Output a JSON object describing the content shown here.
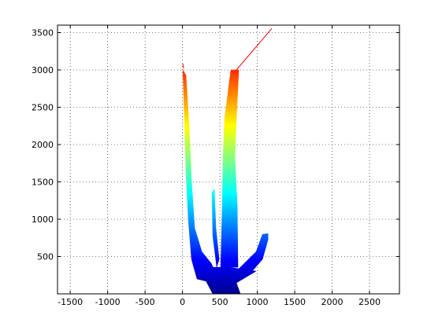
{
  "chart_data": {
    "type": "patch",
    "xlim": [
      -1670,
      2900
    ],
    "ylim": [
      0,
      3600
    ],
    "xticks": [
      -1500,
      -1000,
      -500,
      0,
      500,
      1000,
      1500,
      2000,
      2500
    ],
    "yticks": [
      500,
      1000,
      1500,
      2000,
      2500,
      3000,
      3500
    ],
    "grid": true,
    "clim": [
      0,
      3600
    ],
    "colormap": [
      "#00008f",
      "#0000ff",
      "#0080ff",
      "#00ffff",
      "#80ff80",
      "#ffff00",
      "#ff8000",
      "#ff0000",
      "#800000"
    ],
    "series": [
      {
        "kind": "patch",
        "x": [
          5,
          47,
          89,
          121,
          163,
          258,
          384,
          458,
          405,
          195,
          121,
          79,
          47,
          26
        ],
        "y": [
          3000,
          2927,
          2245,
          1511,
          881,
          566,
          409,
          252,
          147,
          199,
          462,
          986,
          1615,
          2350
        ]
      },
      {
        "kind": "patch",
        "x": [
          395,
          426,
          447,
          490,
          458,
          405
        ],
        "y": [
          1353,
          1406,
          881,
          462,
          357,
          776
        ]
      },
      {
        "kind": "patch",
        "x": [
          647,
          753,
          721,
          700,
          732,
          742,
          511,
          532,
          542,
          563
        ],
        "y": [
          3000,
          3000,
          2350,
          1825,
          1196,
          357,
          357,
          1196,
          1825,
          2350
        ]
      },
      {
        "kind": "patch",
        "x": [
          721,
          985,
          1069,
          1143,
          1143,
          1069,
          932,
          742
        ],
        "y": [
          304,
          566,
          797,
          808,
          724,
          462,
          304,
          231
        ]
      },
      {
        "kind": "patch",
        "x": [
          247,
          616,
          985,
          721,
          774,
          405,
          300
        ],
        "y": [
          357,
          357,
          304,
          147,
          0,
          0,
          199
        ]
      },
      {
        "kind": "line",
        "color": "#ff0000",
        "x": [
          721,
          1195
        ],
        "y": [
          3000,
          3556
        ]
      },
      {
        "kind": "line",
        "color": "#ff0000",
        "x": [
          5,
          16
        ],
        "y": [
          3084,
          3021
        ]
      }
    ]
  }
}
